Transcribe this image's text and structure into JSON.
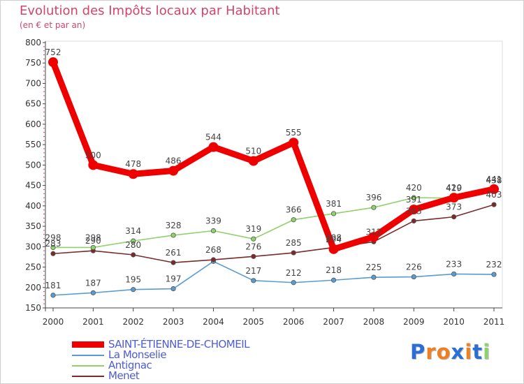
{
  "header": {
    "title": "Evolution des Impôts locaux par Habitant",
    "subtitle": "(en € et par an)"
  },
  "chart_data": {
    "type": "line",
    "title": "Evolution des Impôts locaux par Habitant",
    "subtitle": "(en € et par an)",
    "x": [
      "2000",
      "2001",
      "2002",
      "2003",
      "2004",
      "2005",
      "2006",
      "2007",
      "2008",
      "2009",
      "2010",
      "2011"
    ],
    "ylim": [
      150,
      800
    ],
    "yticks": [
      150,
      200,
      250,
      300,
      350,
      400,
      450,
      500,
      550,
      600,
      650,
      700,
      750,
      800
    ],
    "grid": false,
    "legend_position": "bottom-left",
    "series": [
      {
        "name": "SAINT-ÉTIENNE-DE-CHOMEIL",
        "color": "#ee0000",
        "values": [
          752,
          500,
          478,
          486,
          544,
          510,
          555,
          294,
          324,
          391,
          420,
          441
        ],
        "labels": [
          "752",
          "500",
          "478",
          "486",
          "544",
          "510",
          "555",
          "294",
          "",
          "391",
          "420",
          "441"
        ]
      },
      {
        "name": "La Monselie",
        "color": "#5a9bd0",
        "values": [
          181,
          187,
          195,
          197,
          264,
          217,
          212,
          218,
          225,
          226,
          233,
          232
        ],
        "labels": [
          "181",
          "187",
          "195",
          "197",
          "",
          "217",
          "212",
          "218",
          "225",
          "226",
          "233",
          "232"
        ]
      },
      {
        "name": "Antignac",
        "color": "#8fd16a",
        "values": [
          298,
          298,
          314,
          328,
          339,
          319,
          366,
          381,
          396,
          420,
          419,
          438
        ],
        "labels": [
          "298",
          "298",
          "314",
          "328",
          "339",
          "319",
          "366",
          "381",
          "396",
          "420",
          "419",
          "438"
        ]
      },
      {
        "name": "Menet",
        "color": "#7a2a2a",
        "values": [
          283,
          290,
          280,
          261,
          268,
          276,
          285,
          298,
          312,
          363,
          373,
          403
        ],
        "labels": [
          "283",
          "290",
          "280",
          "261",
          "268",
          "276",
          "285",
          "298",
          "312",
          "363",
          "373",
          "403"
        ]
      }
    ]
  },
  "logo": {
    "text": "Proxiti",
    "colors": [
      "#2a6fd6",
      "#ee7f22",
      "#ee7f22",
      "#2a6fd6",
      "#ee7f22",
      "#2a6fd6",
      "#8fd16a"
    ]
  }
}
